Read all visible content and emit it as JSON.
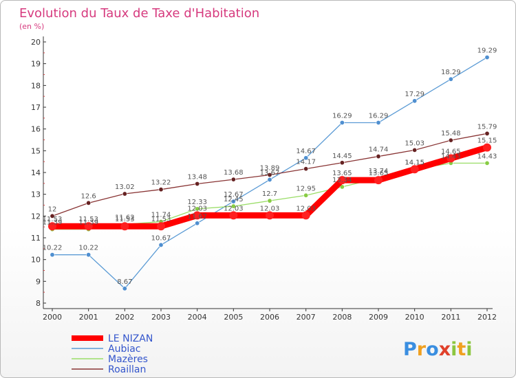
{
  "chart_data": {
    "type": "line",
    "title": "Evolution du Taux de Taxe d'Habitation",
    "subtitle": "(en %)",
    "x": [
      "2000",
      "2001",
      "2002",
      "2003",
      "2004",
      "2005",
      "2006",
      "2007",
      "2008",
      "2009",
      "2010",
      "2011",
      "2012"
    ],
    "ylim": [
      8,
      20
    ],
    "yticks": [
      "8",
      "9",
      "10",
      "11",
      "12",
      "13",
      "14",
      "15",
      "16",
      "17",
      "18",
      "19",
      "20"
    ],
    "grid": false,
    "legend_position": "bottom-left",
    "series": [
      {
        "name": "LE NIZAN",
        "color": "#ff0000",
        "marker_color": "#ff2020",
        "values": [
          11.53,
          11.53,
          11.53,
          11.53,
          12.03,
          12.03,
          12.03,
          12.03,
          13.65,
          13.65,
          14.15,
          14.65,
          15.15
        ],
        "labels": [
          "11.53",
          "11.53",
          "11.53",
          "11.53",
          "12.03",
          "12.03",
          "12.03",
          "12.03",
          "13.65",
          "13.65",
          "14.15",
          "14.65",
          "15.15"
        ]
      },
      {
        "name": "Aubiac",
        "color": "#5b9bd5",
        "marker_color": "#4f8fd0",
        "values": [
          10.22,
          10.22,
          8.67,
          10.67,
          11.67,
          12.67,
          13.67,
          14.67,
          16.29,
          16.29,
          17.29,
          18.29,
          19.29
        ],
        "labels": [
          "10.22",
          "10.22",
          "8.67",
          "10.67",
          "11.67",
          "12.67",
          "13.67",
          "14.67",
          "16.29",
          "16.29",
          "17.29",
          "18.29",
          "19.29"
        ]
      },
      {
        "name": "Mazères",
        "color": "#99dd66",
        "marker_color": "#88cc44",
        "values": [
          11.39,
          11.39,
          11.62,
          11.74,
          12.33,
          12.45,
          12.7,
          12.95,
          13.34,
          13.74,
          14.15,
          14.43,
          14.43
        ],
        "labels": [
          "11.39",
          "11.39",
          "11.62",
          "11.74",
          "12.33",
          "12.45",
          "12.7",
          "12.95",
          "13.34",
          "13.74",
          "14.15",
          "14.43",
          "14.43"
        ]
      },
      {
        "name": "Roaillan",
        "color": "#883333",
        "marker_color": "#662222",
        "values": [
          12,
          12.6,
          13.02,
          13.22,
          13.48,
          13.68,
          13.89,
          14.17,
          14.45,
          14.74,
          15.03,
          15.48,
          15.79
        ],
        "labels": [
          "12",
          "12.6",
          "13.02",
          "13.22",
          "13.48",
          "13.68",
          "13.89",
          "14.17",
          "14.45",
          "14.74",
          "15.03",
          "15.48",
          "15.79"
        ]
      }
    ]
  },
  "logo": {
    "text": "Proxiti",
    "letters": [
      "P",
      "r",
      "o",
      "x",
      "i",
      "t",
      "i"
    ],
    "colors": [
      "#3a8ee0",
      "#f0a020",
      "#3a8ee0",
      "#e0402a",
      "#8cc63f",
      "#f0a020",
      "#8cc63f"
    ]
  }
}
